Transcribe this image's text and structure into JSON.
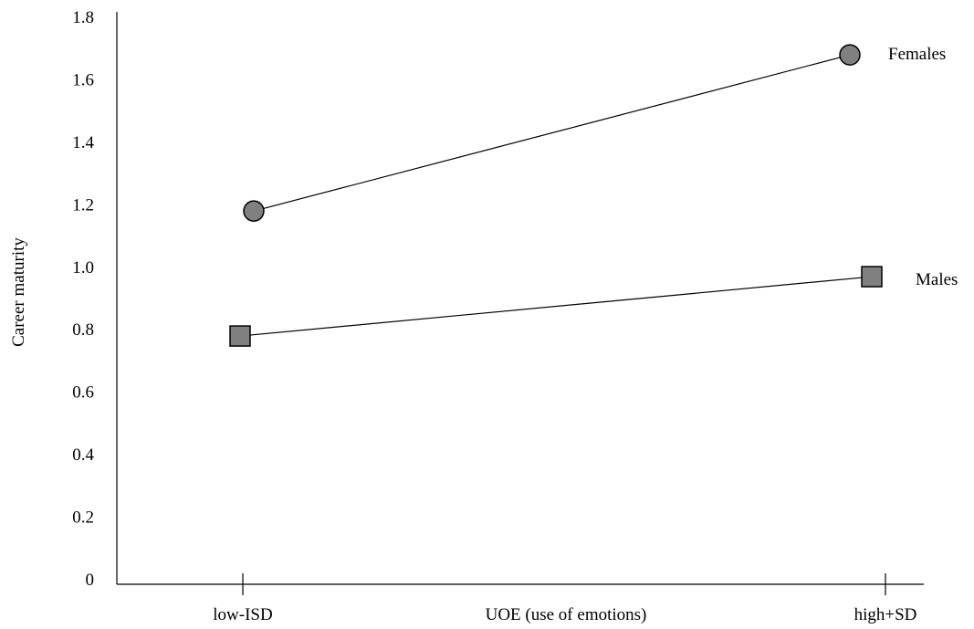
{
  "chart_data": {
    "type": "line",
    "title": "",
    "xlabel": "UOE (use of emotions)",
    "ylabel": "Career maturity",
    "categories": [
      "low-ISD",
      "high+SD"
    ],
    "yticks": [
      "0",
      "0.2",
      "0.4",
      "0.6",
      "0.8",
      "1.0",
      "1.2",
      "1.4",
      "1.6",
      "1.8"
    ],
    "ylim": [
      0,
      1.8
    ],
    "grid": false,
    "legend": "labels at line ends",
    "series": [
      {
        "name": "Females",
        "marker": "circle",
        "values": [
          1.18,
          1.68
        ],
        "color": "#808080"
      },
      {
        "name": "Males",
        "marker": "square",
        "values": [
          0.78,
          0.97
        ],
        "color": "#808080"
      }
    ]
  }
}
